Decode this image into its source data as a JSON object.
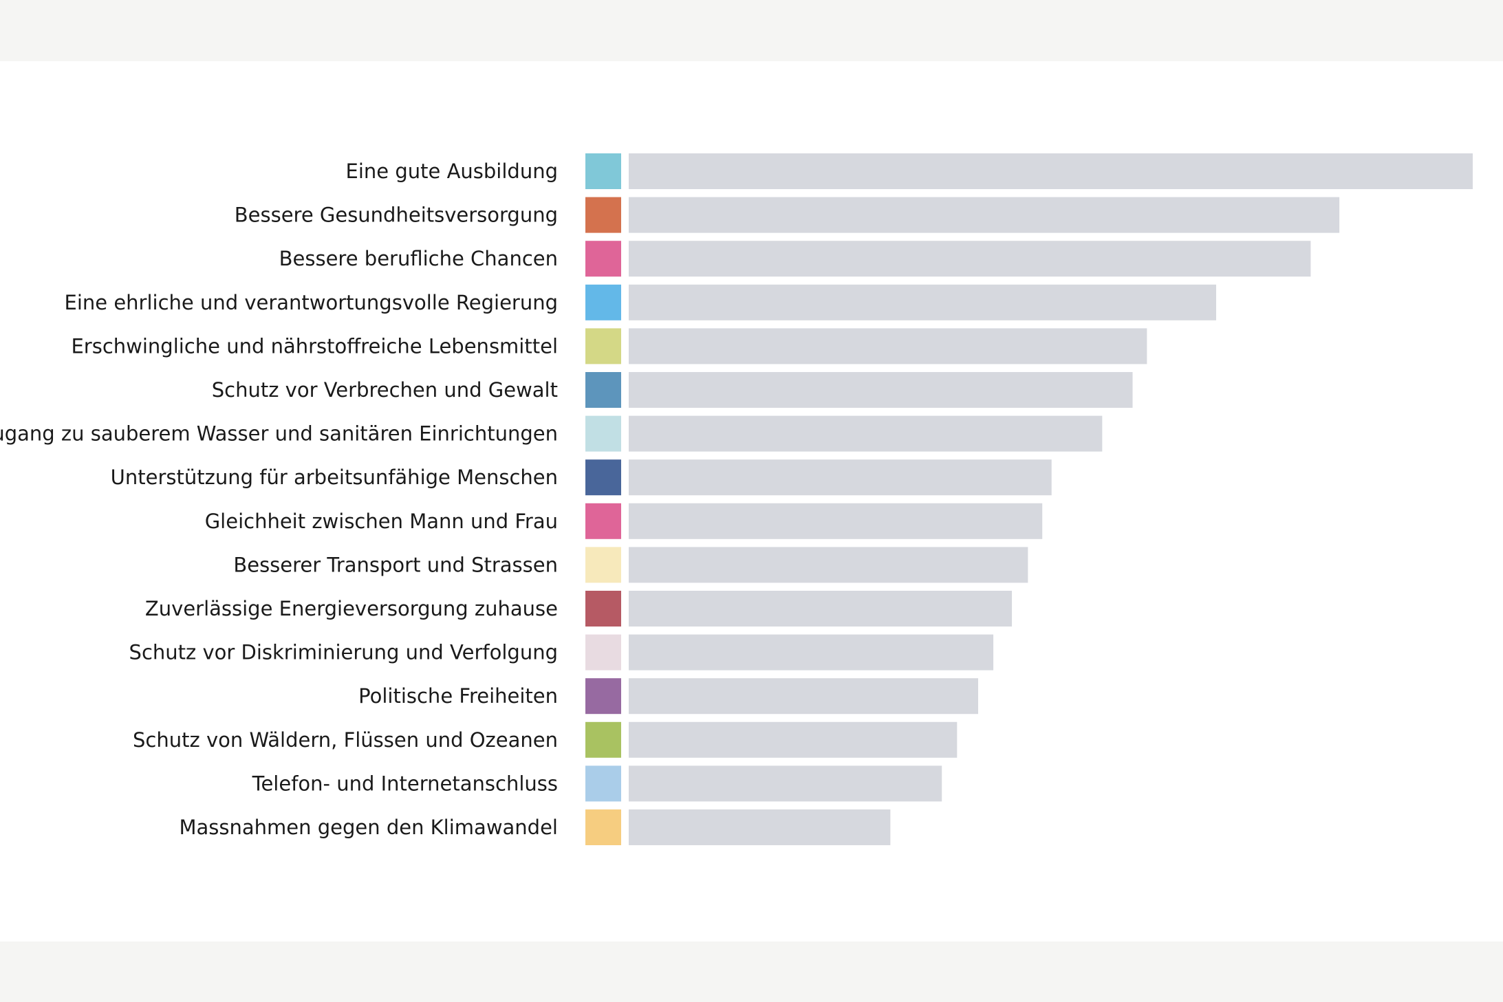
{
  "chart_data": {
    "type": "bar",
    "orientation": "horizontal",
    "title": "",
    "xlabel": "",
    "ylabel": "",
    "grid": false,
    "legend": "none",
    "xlim": [
      0,
      100
    ],
    "bar_color": "#d6d8de",
    "categories": [
      "Eine gute Ausbildung",
      "Bessere Gesundheitsversorgung",
      "Bessere berufliche Chancen",
      "Eine ehrliche und verantwortungsvolle Regierung",
      "Erschwingliche und nährstoffreiche Lebensmittel",
      "Schutz vor Verbrechen und Gewalt",
      "Zugang zu sauberem Wasser und sanitären Einrichtungen",
      "Unterstützung für arbeitsunfähige Menschen",
      "Gleichheit zwischen Mann und Frau",
      "Besserer Transport und Strassen",
      "Zuverlässige Energieversorgung zuhause",
      "Schutz vor Diskriminierung und Verfolgung",
      "Politische Freiheiten",
      "Schutz von Wäldern, Flüssen und Ozeanen",
      "Telefon- und Internetanschluss",
      "Massnahmen gegen den Klimawandel"
    ],
    "values": [
      100,
      84.2,
      80.8,
      69.6,
      61.4,
      59.7,
      56.1,
      50.1,
      49.0,
      47.3,
      45.4,
      43.2,
      41.4,
      38.9,
      37.1,
      31.0
    ],
    "swatch_colors": [
      "#80c8d8",
      "#d4724e",
      "#df6598",
      "#63b8e8",
      "#d4d886",
      "#5d95bc",
      "#c1dfe4",
      "#49669a",
      "#df6598",
      "#f7e9bb",
      "#b65a64",
      "#e8dbe1",
      "#976aa1",
      "#a9c261",
      "#aacde9",
      "#f6cd80"
    ]
  }
}
